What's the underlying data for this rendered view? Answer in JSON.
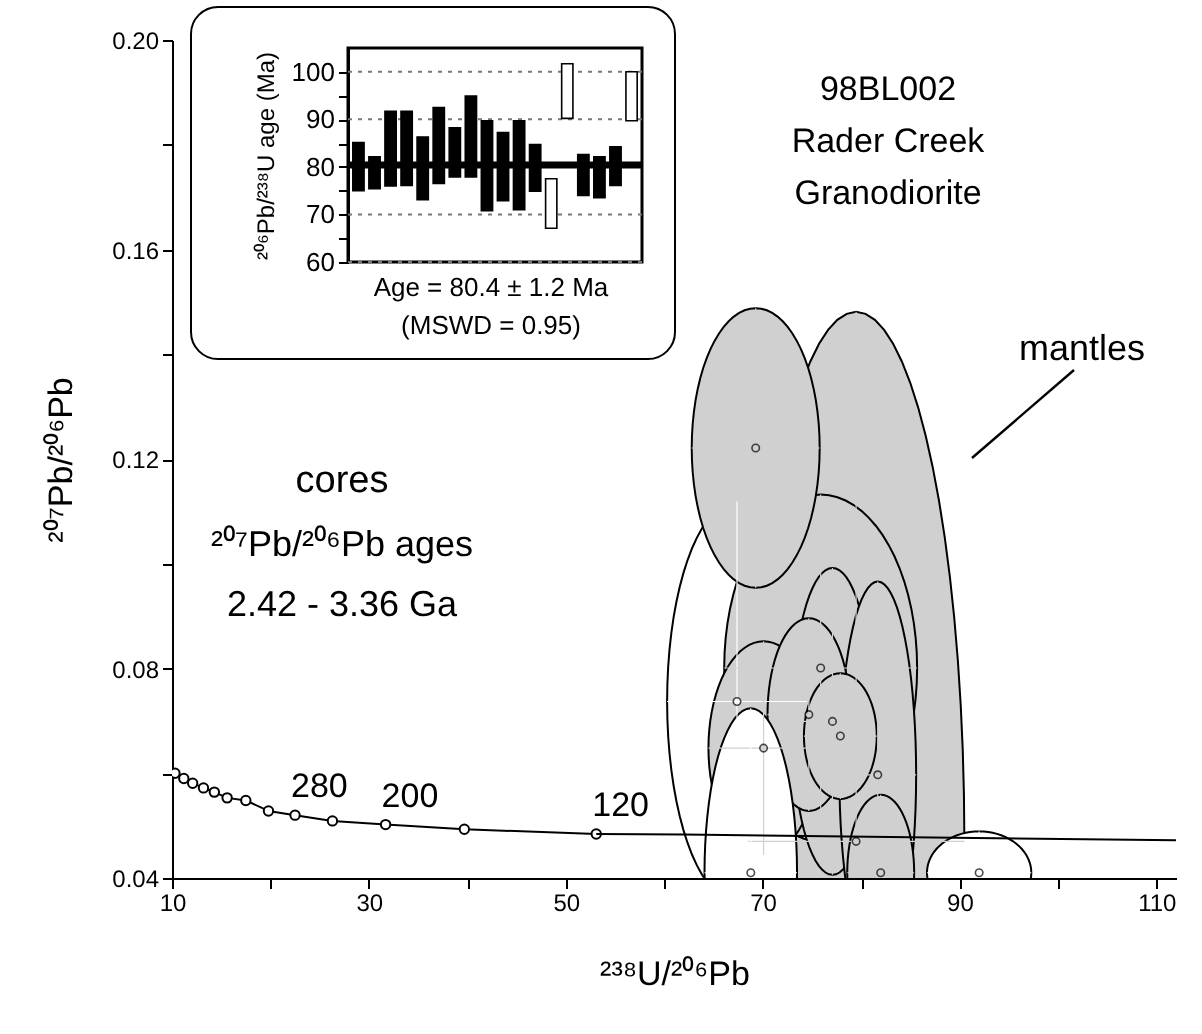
{
  "chart_data": [
    {
      "type": "scatter",
      "xlabel": "²³⁸U/²⁰⁶Pb",
      "ylabel": "²⁰⁷Pb/²⁰⁶Pb",
      "xlim": [
        10,
        112
      ],
      "xticks": [
        10,
        {
          "value": 20,
          "label": null
        },
        30,
        {
          "value": 40,
          "label": null
        },
        50,
        {
          "value": 60,
          "label": null
        },
        70,
        {
          "value": 80,
          "label": null
        },
        90,
        {
          "value": 100,
          "label": null
        },
        110
      ],
      "ylim": [
        0.04,
        0.2
      ],
      "yticks": [
        0.04,
        {
          "value": 0.06,
          "label": null
        },
        0.08,
        {
          "value": 0.1,
          "label": null
        },
        0.12,
        {
          "value": 0.14,
          "label": null
        },
        0.16,
        {
          "value": 0.18,
          "label": null
        },
        {
          "value": 0.2,
          "label": "0.20"
        }
      ],
      "annotations": [
        "98BL002",
        "Rader Creek",
        "Granodiorite",
        "mantles",
        "cores",
        "²⁰⁷Pb/²⁰⁶Pb ages",
        "2.42 - 3.36 Ga",
        {
          "text": "280",
          "x": 22.5,
          "y": 0.052
        },
        {
          "text": "200",
          "x": 31.7,
          "y": 0.0502
        },
        {
          "text": "120",
          "x": 53.1,
          "y": 0.0484
        }
      ],
      "series": [
        {
          "type": "scatter",
          "x": [
            67.4,
            79.5,
            75.9,
            69.3,
            70.1,
            77.1,
            81.7,
            74.7,
            77.9,
            82.0,
            68.8,
            92.0
          ],
          "values": [
            0.0737,
            0.047,
            0.0801,
            0.1221,
            0.0648,
            0.0699,
            0.0597,
            0.0712,
            0.0671,
            0.041,
            0.041,
            0.041
          ],
          "xerrors": [
            7.1,
            11,
            9.8,
            6.5,
            5.6,
            4.1,
            3.9,
            4.2,
            3.7,
            3.4,
            4.7,
            5.3
          ],
          "errors": [
            0.0382,
            0.1011,
            0.0331,
            0.0267,
            0.0204,
            0.0293,
            0.0369,
            0.0184,
            0.012,
            0.0149,
            0.0314,
            0.0079
          ],
          "colors": [
            "#ffffff",
            "#d0d0d0",
            "#d0d0d0",
            "#d0d0d0",
            "#d0d0d0",
            "#d0d0d0",
            "#d0d0d0",
            "#d0d0d0",
            "#d0d0d0",
            "#d0d0d0",
            "#ffffff",
            "#ffffff"
          ]
        },
        {
          "type": "line",
          "marker": "circle",
          "color": "#000000",
          "x": [
            10.3,
            11.2,
            12.1,
            13.2,
            14.3,
            15.6,
            17.5,
            19.8,
            22.5,
            26.3,
            31.7,
            39.7,
            53.1
          ],
          "values": [
            0.06,
            0.059,
            0.0581,
            0.0572,
            0.0564,
            0.0553,
            0.0548,
            0.0528,
            0.052,
            0.0509,
            0.0502,
            0.0493,
            0.0484
          ]
        },
        {
          "type": "line",
          "marker": "none",
          "color": "#000000",
          "x": [
            53.1,
            62,
            112
          ],
          "values": [
            0.0484,
            0.0483,
            0.0472
          ]
        }
      ]
    },
    {
      "type": "bar",
      "ylabel": "²⁰⁶Pb/²³⁸U age (Ma)",
      "categories": [
        null,
        null,
        null,
        null,
        null,
        null,
        null,
        null,
        null,
        null,
        null,
        null,
        null,
        null,
        null,
        null,
        null,
        null
      ],
      "base": [
        75.0,
        75.4,
        76.0,
        76.1,
        73.1,
        76.5,
        77.9,
        77.9,
        70.8,
        72.9,
        71.0,
        74.9,
        67.1,
        90.2,
        74.0,
        73.5,
        76.1,
        89.7
      ],
      "values": [
        10.1,
        6.7,
        15.7,
        15.6,
        13.2,
        16.0,
        10.3,
        17.0,
        18.9,
        14.3,
        18.7,
        9.8,
        10.4,
        11.5,
        8.6,
        8.6,
        8.1,
        10.3
      ],
      "colors": [
        "#000000",
        "#000000",
        "#000000",
        "#000000",
        "#000000",
        "#000000",
        "#000000",
        "#000000",
        "#000000",
        "#000000",
        "#000000",
        "#000000",
        "#ffffff",
        "#ffffff",
        "#000000",
        "#000000",
        "#000000",
        "#ffffff"
      ],
      "ylim": [
        60,
        105
      ],
      "yticks": [
        60,
        {
          "value": 65,
          "label": null
        },
        70,
        {
          "value": 75,
          "label": null
        },
        80,
        {
          "value": 85,
          "label": null
        },
        90,
        {
          "value": 95,
          "label": null
        },
        100
      ],
      "grid": "y",
      "line_style": "dotted",
      "ref_lines": [
        {
          "axis": "y",
          "value": 80.4,
          "color": "#000000"
        }
      ],
      "annotations": [
        "Age = 80.4 ± 1.2 Ma",
        "(MSWD = 0.95)"
      ]
    }
  ]
}
